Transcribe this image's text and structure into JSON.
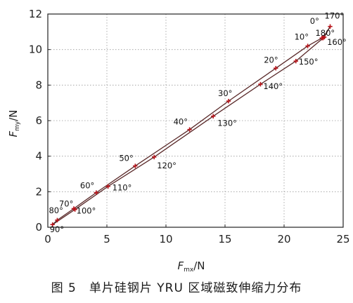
{
  "caption": "图 5　单片硅钢片 YRU 区域磁致伸缩力分布",
  "chart_data": {
    "type": "scatter",
    "title": "",
    "xlabel": {
      "main": "F",
      "sub": "mx",
      "unit": "/N"
    },
    "ylabel": {
      "main": "F",
      "sub": "my",
      "unit": "/N"
    },
    "xlim": [
      0,
      25
    ],
    "ylim": [
      0,
      12
    ],
    "xticks": [
      0,
      5,
      10,
      15,
      20,
      25
    ],
    "yticks": [
      0,
      2,
      4,
      6,
      8,
      10,
      12
    ],
    "xtick_labels": [
      "0",
      "5",
      "10",
      "15",
      "20",
      "25"
    ],
    "ytick_labels": [
      "0",
      "2",
      "4",
      "6",
      "8",
      "10",
      "12"
    ],
    "grid": true,
    "marker_color": "#b8141b",
    "line_color": "#5a2a2a",
    "points": [
      {
        "label": "0°",
        "x": 23.2,
        "y": 10.65
      },
      {
        "label": "10°",
        "x": 22.0,
        "y": 10.2
      },
      {
        "label": "20°",
        "x": 19.3,
        "y": 8.95
      },
      {
        "label": "30°",
        "x": 15.3,
        "y": 7.1
      },
      {
        "label": "40°",
        "x": 12.0,
        "y": 5.5
      },
      {
        "label": "50°",
        "x": 7.4,
        "y": 3.45
      },
      {
        "label": "60°",
        "x": 4.1,
        "y": 1.95
      },
      {
        "label": "70°",
        "x": 2.2,
        "y": 1.05
      },
      {
        "label": "80°",
        "x": 0.8,
        "y": 0.4
      },
      {
        "label": "90°",
        "x": 0.4,
        "y": 0.15
      },
      {
        "label": "100°",
        "x": 2.3,
        "y": 1.0
      },
      {
        "label": "110°",
        "x": 5.1,
        "y": 2.3
      },
      {
        "label": "120°",
        "x": 9.0,
        "y": 3.95
      },
      {
        "label": "130°",
        "x": 14.0,
        "y": 6.25
      },
      {
        "label": "140°",
        "x": 18.0,
        "y": 8.05
      },
      {
        "label": "150°",
        "x": 21.0,
        "y": 9.35
      },
      {
        "label": "160°",
        "x": 23.4,
        "y": 10.7
      },
      {
        "label": "170°",
        "x": 23.9,
        "y": 11.3
      },
      {
        "label": "180°",
        "x": 23.3,
        "y": 10.65
      }
    ],
    "upper_branch": [
      "0°",
      "10°",
      "20°",
      "30°",
      "40°",
      "50°",
      "60°",
      "70°",
      "80°",
      "90°"
    ],
    "lower_branch": [
      "90°",
      "100°",
      "110°",
      "120°",
      "130°",
      "140°",
      "150°",
      "160°",
      "170°",
      "180°"
    ]
  }
}
